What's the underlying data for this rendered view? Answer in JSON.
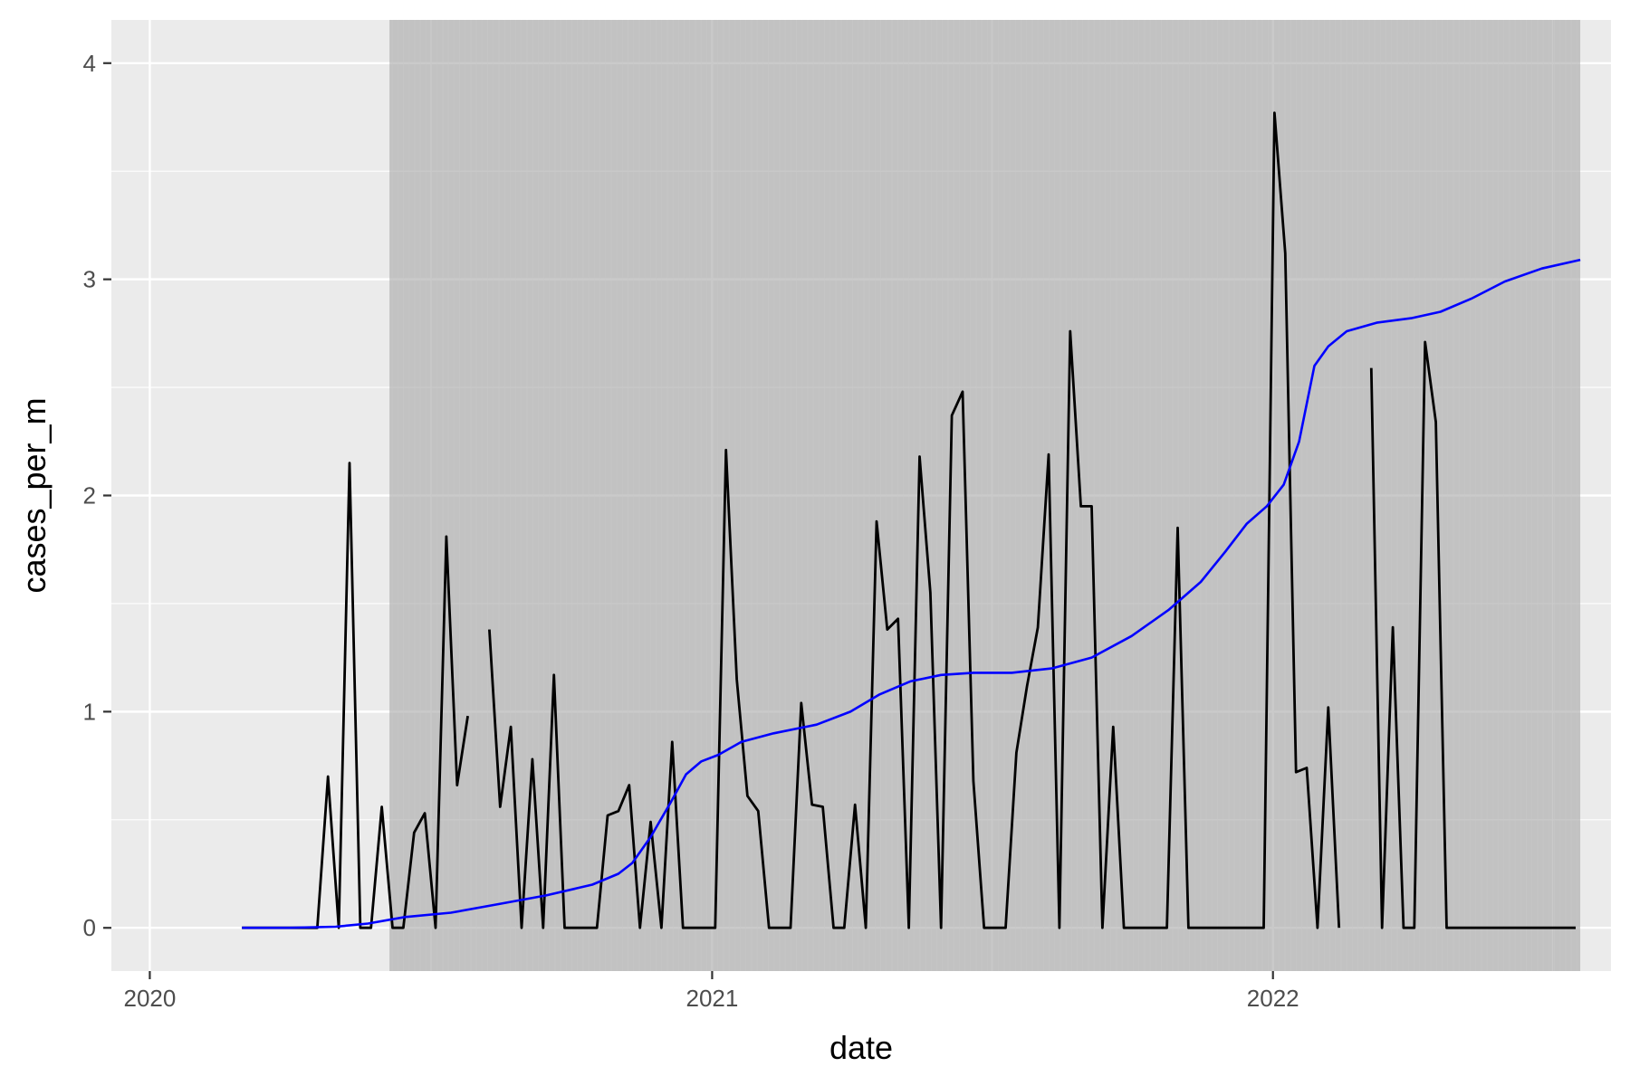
{
  "chart_data": {
    "type": "line",
    "title": "",
    "xlabel": "date",
    "ylabel": "cases_per_m",
    "x_ticks": [
      "2020",
      "2021",
      "2022"
    ],
    "y_ticks": [
      "0",
      "1",
      "2",
      "3",
      "4"
    ],
    "xlim": [
      "2019-12-07",
      "2022-08-09"
    ],
    "ylim": [
      -0.2,
      4.2
    ],
    "grid": true,
    "legend": "none",
    "colors": {
      "panel": "#ebebeb",
      "grid": "#ffffff",
      "band": "#aaaaaa",
      "band_stripe": "#c8c8c8",
      "cases": "#000000",
      "trend": "#0000ff",
      "tick_text": "#4d4d4d"
    },
    "shaded_period": [
      "2020-06-05",
      "2022-07-20"
    ],
    "series": [
      {
        "values": [
          [
            "2020-03-01",
            0
          ],
          [
            "2020-03-08",
            0
          ],
          [
            "2020-03-15",
            0
          ],
          [
            "2020-03-22",
            0
          ],
          [
            "2020-03-29",
            0
          ],
          [
            "2020-04-05",
            0
          ],
          [
            "2020-04-12",
            0
          ],
          [
            "2020-04-19",
            0
          ],
          [
            "2020-04-26",
            0.7
          ],
          [
            "2020-05-03",
            0
          ],
          [
            "2020-05-10",
            2.15
          ],
          [
            "2020-05-17",
            0
          ],
          [
            "2020-05-24",
            0
          ],
          [
            "2020-05-31",
            0.56
          ],
          [
            "2020-06-07",
            0
          ],
          [
            "2020-06-14",
            0
          ],
          [
            "2020-06-21",
            0.44
          ],
          [
            "2020-06-28",
            0.53
          ],
          [
            "2020-07-05",
            0
          ],
          [
            "2020-07-12",
            1.81
          ],
          [
            "2020-07-19",
            0.66
          ],
          [
            "2020-07-26",
            0.98
          ],
          [
            "2020-08-02",
            null
          ],
          [
            "2020-08-09",
            1.38
          ],
          [
            "2020-08-16",
            0.56
          ],
          [
            "2020-08-23",
            0.93
          ],
          [
            "2020-08-30",
            0
          ],
          [
            "2020-09-06",
            0.78
          ],
          [
            "2020-09-13",
            0
          ],
          [
            "2020-09-20",
            1.17
          ],
          [
            "2020-09-27",
            0
          ],
          [
            "2020-10-04",
            0
          ],
          [
            "2020-10-11",
            0
          ],
          [
            "2020-10-18",
            0
          ],
          [
            "2020-10-25",
            0.52
          ],
          [
            "2020-11-01",
            0.54
          ],
          [
            "2020-11-08",
            0.66
          ],
          [
            "2020-11-15",
            0
          ],
          [
            "2020-11-22",
            0.49
          ],
          [
            "2020-11-29",
            0
          ],
          [
            "2020-12-06",
            0.86
          ],
          [
            "2020-12-13",
            0
          ],
          [
            "2020-12-20",
            0
          ],
          [
            "2020-12-27",
            0
          ],
          [
            "2021-01-03",
            0
          ],
          [
            "2021-01-10",
            2.21
          ],
          [
            "2021-01-17",
            1.15
          ],
          [
            "2021-01-24",
            0.61
          ],
          [
            "2021-01-31",
            0.54
          ],
          [
            "2021-02-07",
            0
          ],
          [
            "2021-02-14",
            0
          ],
          [
            "2021-02-21",
            0
          ],
          [
            "2021-02-28",
            1.04
          ],
          [
            "2021-03-07",
            0.57
          ],
          [
            "2021-03-14",
            0.56
          ],
          [
            "2021-03-21",
            0
          ],
          [
            "2021-03-28",
            0
          ],
          [
            "2021-04-04",
            0.57
          ],
          [
            "2021-04-11",
            0
          ],
          [
            "2021-04-18",
            1.88
          ],
          [
            "2021-04-25",
            1.38
          ],
          [
            "2021-05-02",
            1.43
          ],
          [
            "2021-05-09",
            0
          ],
          [
            "2021-05-16",
            2.18
          ],
          [
            "2021-05-23",
            1.55
          ],
          [
            "2021-05-30",
            0
          ],
          [
            "2021-06-06",
            2.37
          ],
          [
            "2021-06-13",
            2.48
          ],
          [
            "2021-06-20",
            0.68
          ],
          [
            "2021-06-27",
            0
          ],
          [
            "2021-07-04",
            0
          ],
          [
            "2021-07-11",
            0
          ],
          [
            "2021-07-18",
            0.81
          ],
          [
            "2021-07-25",
            1.12
          ],
          [
            "2021-08-01",
            1.39
          ],
          [
            "2021-08-08",
            2.19
          ],
          [
            "2021-08-15",
            0
          ],
          [
            "2021-08-22",
            2.76
          ],
          [
            "2021-08-29",
            1.95
          ],
          [
            "2021-09-05",
            1.95
          ],
          [
            "2021-09-12",
            0
          ],
          [
            "2021-09-19",
            0.93
          ],
          [
            "2021-09-26",
            0
          ],
          [
            "2021-10-03",
            0
          ],
          [
            "2021-10-10",
            0
          ],
          [
            "2021-10-17",
            0
          ],
          [
            "2021-10-24",
            0
          ],
          [
            "2021-10-31",
            1.85
          ],
          [
            "2021-11-07",
            0
          ],
          [
            "2021-11-14",
            0
          ],
          [
            "2021-11-21",
            0
          ],
          [
            "2021-11-28",
            0
          ],
          [
            "2021-12-05",
            0
          ],
          [
            "2021-12-12",
            0
          ],
          [
            "2021-12-19",
            0
          ],
          [
            "2021-12-26",
            0
          ],
          [
            "2022-01-02",
            3.77
          ],
          [
            "2022-01-09",
            3.12
          ],
          [
            "2022-01-16",
            0.72
          ],
          [
            "2022-01-23",
            0.74
          ],
          [
            "2022-01-30",
            0
          ],
          [
            "2022-02-06",
            1.02
          ],
          [
            "2022-02-13",
            0
          ],
          [
            "2022-02-20",
            null
          ],
          [
            "2022-02-27",
            null
          ],
          [
            "2022-03-06",
            2.59
          ],
          [
            "2022-03-13",
            0
          ],
          [
            "2022-03-20",
            1.39
          ],
          [
            "2022-03-27",
            0
          ],
          [
            "2022-04-03",
            0
          ],
          [
            "2022-04-10",
            2.71
          ],
          [
            "2022-04-17",
            2.34
          ],
          [
            "2022-04-24",
            0
          ],
          [
            "2022-05-01",
            0
          ],
          [
            "2022-05-08",
            0
          ],
          [
            "2022-05-15",
            0
          ],
          [
            "2022-05-22",
            0
          ],
          [
            "2022-05-29",
            0
          ],
          [
            "2022-06-05",
            0
          ],
          [
            "2022-06-12",
            0
          ],
          [
            "2022-06-19",
            0
          ],
          [
            "2022-06-26",
            0
          ],
          [
            "2022-07-03",
            0
          ],
          [
            "2022-07-10",
            0
          ],
          [
            "2022-07-17",
            0
          ]
        ]
      },
      {
        "values": [
          [
            "2020-03-01",
            0
          ],
          [
            "2020-04-01",
            0
          ],
          [
            "2020-05-01",
            0.005
          ],
          [
            "2020-05-22",
            0.02
          ],
          [
            "2020-06-15",
            0.05
          ],
          [
            "2020-07-15",
            0.07
          ],
          [
            "2020-08-15",
            0.11
          ],
          [
            "2020-09-15",
            0.15
          ],
          [
            "2020-10-15",
            0.2
          ],
          [
            "2020-11-01",
            0.25
          ],
          [
            "2020-11-10",
            0.3
          ],
          [
            "2020-11-22",
            0.42
          ],
          [
            "2020-12-05",
            0.58
          ],
          [
            "2020-12-15",
            0.71
          ],
          [
            "2020-12-25",
            0.77
          ],
          [
            "2021-01-05",
            0.8
          ],
          [
            "2021-01-20",
            0.86
          ],
          [
            "2021-02-10",
            0.9
          ],
          [
            "2021-03-10",
            0.94
          ],
          [
            "2021-04-01",
            1.0
          ],
          [
            "2021-04-20",
            1.08
          ],
          [
            "2021-05-10",
            1.14
          ],
          [
            "2021-05-30",
            1.17
          ],
          [
            "2021-06-20",
            1.18
          ],
          [
            "2021-07-15",
            1.18
          ],
          [
            "2021-08-10",
            1.2
          ],
          [
            "2021-09-05",
            1.25
          ],
          [
            "2021-10-01",
            1.35
          ],
          [
            "2021-10-25",
            1.47
          ],
          [
            "2021-11-15",
            1.6
          ],
          [
            "2021-12-01",
            1.74
          ],
          [
            "2021-12-15",
            1.87
          ],
          [
            "2021-12-28",
            1.95
          ],
          [
            "2022-01-08",
            2.05
          ],
          [
            "2022-01-18",
            2.25
          ],
          [
            "2022-01-28",
            2.6
          ],
          [
            "2022-02-06",
            2.69
          ],
          [
            "2022-02-18",
            2.76
          ],
          [
            "2022-03-10",
            2.8
          ],
          [
            "2022-04-01",
            2.82
          ],
          [
            "2022-04-20",
            2.85
          ],
          [
            "2022-05-10",
            2.91
          ],
          [
            "2022-06-01",
            2.99
          ],
          [
            "2022-06-25",
            3.05
          ],
          [
            "2022-07-20",
            3.09
          ]
        ]
      }
    ]
  }
}
